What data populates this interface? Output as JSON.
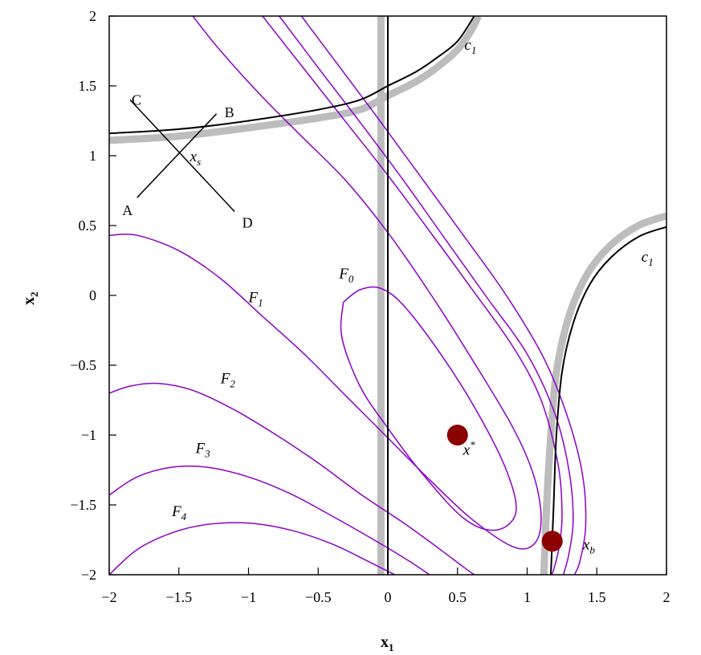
{
  "chart_data": {
    "type": "line",
    "title": "",
    "xlabel": "x",
    "xlabel_sub": "1",
    "ylabel": "x",
    "ylabel_sub": "2",
    "xlim": [
      -2,
      2
    ],
    "ylim": [
      -2,
      2
    ],
    "grid": false,
    "xticks": [
      {
        "value": -2,
        "label": "−2"
      },
      {
        "value": -1.5,
        "label": "−1.5"
      },
      {
        "value": -1,
        "label": "−1"
      },
      {
        "value": -0.5,
        "label": "−0.5"
      },
      {
        "value": 0,
        "label": "0"
      },
      {
        "value": 0.5,
        "label": "0.5"
      },
      {
        "value": 1,
        "label": "1"
      },
      {
        "value": 1.5,
        "label": "1.5"
      },
      {
        "value": 2,
        "label": "2"
      }
    ],
    "yticks": [
      {
        "value": 2,
        "label": "2"
      },
      {
        "value": 1.5,
        "label": "1.5"
      },
      {
        "value": 1,
        "label": "1"
      },
      {
        "value": 0.5,
        "label": "0.5"
      },
      {
        "value": 0,
        "label": "0"
      },
      {
        "value": -0.5,
        "label": "−0.5"
      },
      {
        "value": -1,
        "label": "−1"
      },
      {
        "value": -1.5,
        "label": "−1.5"
      },
      {
        "value": -2,
        "label": "−2"
      }
    ],
    "contours": [
      {
        "id": "f0",
        "label": "F",
        "sub": "0",
        "label_at": [
          -0.35,
          0.12
        ],
        "points": [
          [
            -0.32,
            -0.05
          ],
          [
            -0.2,
            0.04
          ],
          [
            -0.05,
            0.05
          ],
          [
            0.12,
            -0.08
          ],
          [
            0.4,
            -0.45
          ],
          [
            0.65,
            -0.85
          ],
          [
            0.85,
            -1.25
          ],
          [
            0.92,
            -1.55
          ],
          [
            0.78,
            -1.68
          ],
          [
            0.55,
            -1.6
          ],
          [
            0.25,
            -1.28
          ],
          [
            0.0,
            -0.95
          ],
          [
            -0.2,
            -0.65
          ],
          [
            -0.33,
            -0.3
          ],
          [
            -0.32,
            -0.05
          ]
        ]
      },
      {
        "id": "f1",
        "label": "F",
        "sub": "1",
        "label_at": [
          -1.0,
          -0.05
        ],
        "points": [
          [
            -2.0,
            0.43
          ],
          [
            -1.8,
            0.43
          ],
          [
            -1.5,
            0.32
          ],
          [
            -1.2,
            0.12
          ],
          [
            -0.9,
            -0.15
          ],
          [
            -0.6,
            -0.42
          ],
          [
            -0.3,
            -0.72
          ],
          [
            0.0,
            -1.02
          ],
          [
            0.3,
            -1.32
          ],
          [
            0.6,
            -1.6
          ],
          [
            0.9,
            -1.8
          ],
          [
            1.05,
            -1.78
          ],
          [
            1.1,
            -1.6
          ],
          [
            1.05,
            -1.3
          ],
          [
            0.9,
            -0.95
          ],
          [
            0.6,
            -0.45
          ],
          [
            0.3,
            0.02
          ],
          [
            0.0,
            0.45
          ],
          [
            -0.3,
            0.82
          ],
          [
            -0.6,
            1.12
          ],
          [
            -0.9,
            1.42
          ],
          [
            -1.2,
            1.75
          ],
          [
            -1.4,
            2.0
          ]
        ]
      },
      {
        "id": "f1b",
        "label": "",
        "sub": "",
        "points": [
          [
            -0.9,
            2.0
          ],
          [
            -0.6,
            1.62
          ],
          [
            -0.3,
            1.24
          ],
          [
            0.0,
            0.86
          ],
          [
            0.3,
            0.46
          ],
          [
            0.6,
            0.05
          ],
          [
            0.9,
            -0.37
          ],
          [
            1.1,
            -0.75
          ],
          [
            1.22,
            -1.2
          ],
          [
            1.25,
            -1.55
          ],
          [
            1.23,
            -1.8
          ],
          [
            1.18,
            -2.0
          ]
        ]
      },
      {
        "id": "f1c",
        "label": "",
        "sub": "",
        "points": [
          [
            -0.78,
            2.0
          ],
          [
            -0.5,
            1.63
          ],
          [
            -0.2,
            1.24
          ],
          [
            0.1,
            0.84
          ],
          [
            0.4,
            0.42
          ],
          [
            0.7,
            0.0
          ],
          [
            1.0,
            -0.42
          ],
          [
            1.2,
            -0.85
          ],
          [
            1.3,
            -1.25
          ],
          [
            1.33,
            -1.6
          ],
          [
            1.3,
            -1.85
          ],
          [
            1.26,
            -2.0
          ]
        ]
      },
      {
        "id": "f1d",
        "label": "",
        "sub": "",
        "points": [
          [
            -0.62,
            2.0
          ],
          [
            -0.35,
            1.64
          ],
          [
            -0.05,
            1.24
          ],
          [
            0.25,
            0.83
          ],
          [
            0.55,
            0.42
          ],
          [
            0.85,
            0.0
          ],
          [
            1.12,
            -0.45
          ],
          [
            1.3,
            -0.9
          ],
          [
            1.4,
            -1.3
          ],
          [
            1.42,
            -1.65
          ],
          [
            1.38,
            -1.9
          ],
          [
            1.34,
            -2.0
          ]
        ]
      },
      {
        "id": "f2",
        "label": "F",
        "sub": "2",
        "label_at": [
          -1.2,
          -0.63
        ],
        "points": [
          [
            -2.0,
            -0.7
          ],
          [
            -1.85,
            -0.65
          ],
          [
            -1.65,
            -0.63
          ],
          [
            -1.4,
            -0.68
          ],
          [
            -1.1,
            -0.82
          ],
          [
            -0.8,
            -1.0
          ],
          [
            -0.5,
            -1.2
          ],
          [
            -0.2,
            -1.42
          ],
          [
            0.1,
            -1.62
          ],
          [
            0.35,
            -1.8
          ],
          [
            0.55,
            -1.95
          ],
          [
            0.62,
            -2.0
          ]
        ]
      },
      {
        "id": "f3",
        "label": "F",
        "sub": "3",
        "label_at": [
          -1.38,
          -1.13
        ],
        "points": [
          [
            -2.0,
            -1.43
          ],
          [
            -1.8,
            -1.3
          ],
          [
            -1.55,
            -1.23
          ],
          [
            -1.3,
            -1.23
          ],
          [
            -1.0,
            -1.3
          ],
          [
            -0.7,
            -1.42
          ],
          [
            -0.4,
            -1.58
          ],
          [
            -0.1,
            -1.75
          ],
          [
            0.15,
            -1.9
          ],
          [
            0.3,
            -2.0
          ]
        ]
      },
      {
        "id": "f4",
        "label": "F",
        "sub": "4",
        "label_at": [
          -1.55,
          -1.58
        ],
        "points": [
          [
            -2.0,
            -2.0
          ],
          [
            -1.8,
            -1.82
          ],
          [
            -1.55,
            -1.7
          ],
          [
            -1.3,
            -1.64
          ],
          [
            -1.0,
            -1.63
          ],
          [
            -0.7,
            -1.68
          ],
          [
            -0.4,
            -1.78
          ],
          [
            -0.15,
            -1.9
          ],
          [
            0.05,
            -2.0
          ]
        ]
      }
    ],
    "constraints": [
      {
        "id": "c1-upper",
        "label": "c",
        "sub": "1",
        "label_at": [
          0.55,
          1.76
        ],
        "points": [
          [
            -2.0,
            1.16
          ],
          [
            -1.5,
            1.19
          ],
          [
            -1.0,
            1.25
          ],
          [
            -0.5,
            1.33
          ],
          [
            -0.2,
            1.4
          ],
          [
            0.0,
            1.5
          ],
          [
            0.2,
            1.6
          ],
          [
            0.35,
            1.7
          ],
          [
            0.5,
            1.82
          ],
          [
            0.62,
            2.0
          ]
        ]
      },
      {
        "id": "c1-lower",
        "label": "c",
        "sub": "1",
        "label_at": [
          1.82,
          0.24
        ],
        "points": [
          [
            1.17,
            -2.0
          ],
          [
            1.19,
            -1.5
          ],
          [
            1.21,
            -1.0
          ],
          [
            1.25,
            -0.55
          ],
          [
            1.33,
            -0.2
          ],
          [
            1.45,
            0.08
          ],
          [
            1.6,
            0.27
          ],
          [
            1.8,
            0.42
          ],
          [
            2.0,
            0.49
          ]
        ]
      },
      {
        "id": "x1-zero",
        "label": "",
        "sub": "",
        "points": [
          [
            0.0,
            -2.0
          ],
          [
            0.0,
            2.0
          ]
        ]
      }
    ],
    "constraint_shadows": [
      {
        "id": "c1-upper-shadow",
        "points": [
          [
            -2.0,
            1.11
          ],
          [
            -1.5,
            1.14
          ],
          [
            -1.0,
            1.2
          ],
          [
            -0.5,
            1.27
          ],
          [
            -0.2,
            1.33
          ],
          [
            0.0,
            1.43
          ],
          [
            0.2,
            1.53
          ],
          [
            0.35,
            1.63
          ],
          [
            0.5,
            1.76
          ],
          [
            0.6,
            1.9
          ],
          [
            0.65,
            2.0
          ]
        ]
      },
      {
        "id": "c1-lower-shadow",
        "points": [
          [
            1.12,
            -2.0
          ],
          [
            1.14,
            -1.5
          ],
          [
            1.17,
            -1.0
          ],
          [
            1.21,
            -0.55
          ],
          [
            1.3,
            -0.15
          ],
          [
            1.43,
            0.15
          ],
          [
            1.6,
            0.36
          ],
          [
            1.8,
            0.5
          ],
          [
            2.0,
            0.57
          ]
        ]
      },
      {
        "id": "x1-zero-shadow",
        "points": [
          [
            -0.05,
            -2.0
          ],
          [
            -0.05,
            2.0
          ]
        ]
      }
    ],
    "search_lines": [
      {
        "id": "line-AB",
        "from": [
          -1.8,
          0.7
        ],
        "to": [
          -1.23,
          1.3
        ],
        "from_label": "A",
        "to_label": "B"
      },
      {
        "id": "line-CD",
        "from": [
          -1.85,
          1.4
        ],
        "to": [
          -1.1,
          0.6
        ],
        "from_label": "C",
        "to_label": "D"
      }
    ],
    "annotations": [
      {
        "id": "xs",
        "text": "x",
        "sub": "s",
        "at": [
          -1.42,
          0.96
        ]
      },
      {
        "id": "xstar",
        "text": "x",
        "sup": "*",
        "at": [
          0.54,
          -1.14
        ]
      },
      {
        "id": "xb",
        "text": "x",
        "sub": "b",
        "at": [
          1.4,
          -1.82
        ]
      }
    ],
    "points": [
      {
        "id": "xstar-point",
        "x": 0.5,
        "y": -1.0
      },
      {
        "id": "xb-point",
        "x": 1.18,
        "y": -1.76
      }
    ],
    "colors": {
      "contour": "#8B00CC",
      "constraint": "#000000",
      "shadow": "#BDBDBD",
      "point": "#8B0000"
    }
  }
}
